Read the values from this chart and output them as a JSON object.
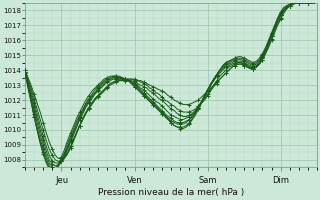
{
  "xlabel": "Pression niveau de la mer( hPa )",
  "ylim": [
    1007.5,
    1018.5
  ],
  "xlim": [
    0,
    96
  ],
  "yticks": [
    1008,
    1009,
    1010,
    1011,
    1012,
    1013,
    1014,
    1015,
    1016,
    1017,
    1018
  ],
  "xtick_positions": [
    12,
    36,
    60,
    84
  ],
  "xtick_labels": [
    "Jeu",
    "Ven",
    "Sam",
    "Dim"
  ],
  "bg_color": "#cce8d8",
  "grid_color_major": "#99c4aa",
  "grid_color_minor": "#b8d8c4",
  "line_color": "#1a5c1a",
  "linewidth": 0.7,
  "series": [
    [
      1014.0,
      1013.5,
      1013.0,
      1012.4,
      1011.8,
      1011.2,
      1010.5,
      1009.8,
      1009.2,
      1008.7,
      1008.3,
      1008.1,
      1008.1,
      1008.2,
      1008.5,
      1008.9,
      1009.3,
      1009.8,
      1010.3,
      1010.7,
      1011.1,
      1011.4,
      1011.7,
      1012.0,
      1012.2,
      1012.4,
      1012.6,
      1012.8,
      1013.0,
      1013.1,
      1013.2,
      1013.3,
      1013.3,
      1013.4,
      1013.4,
      1013.4,
      1013.4,
      1013.3,
      1013.3,
      1013.2,
      1013.1,
      1013.0,
      1012.9,
      1012.8,
      1012.7,
      1012.6,
      1012.5,
      1012.3,
      1012.2,
      1012.0,
      1011.9,
      1011.8,
      1011.7,
      1011.7,
      1011.7,
      1011.8,
      1011.9,
      1012.0,
      1012.2,
      1012.4,
      1012.6,
      1012.8,
      1013.0,
      1013.2,
      1013.4,
      1013.6,
      1013.8,
      1014.0,
      1014.2,
      1014.3,
      1014.4,
      1014.4,
      1014.3,
      1014.2,
      1014.1,
      1014.1,
      1014.2,
      1014.4,
      1014.7,
      1015.1,
      1015.5,
      1016.0,
      1016.5,
      1017.0,
      1017.4,
      1017.8,
      1018.1,
      1018.3,
      1018.4,
      1018.5,
      1018.5,
      1018.5,
      1018.5,
      1018.5,
      1018.5,
      1018.5
    ],
    [
      1014.0,
      1013.4,
      1012.8,
      1012.1,
      1011.4,
      1010.7,
      1010.0,
      1009.3,
      1008.7,
      1008.3,
      1008.0,
      1007.9,
      1007.9,
      1008.1,
      1008.4,
      1008.8,
      1009.3,
      1009.8,
      1010.3,
      1010.7,
      1011.1,
      1011.5,
      1011.8,
      1012.1,
      1012.3,
      1012.5,
      1012.7,
      1012.9,
      1013.1,
      1013.2,
      1013.3,
      1013.4,
      1013.4,
      1013.4,
      1013.4,
      1013.4,
      1013.3,
      1013.3,
      1013.2,
      1013.1,
      1013.0,
      1012.8,
      1012.7,
      1012.5,
      1012.4,
      1012.2,
      1012.0,
      1011.9,
      1011.7,
      1011.6,
      1011.4,
      1011.3,
      1011.2,
      1011.2,
      1011.2,
      1011.3,
      1011.4,
      1011.6,
      1011.8,
      1012.0,
      1012.3,
      1012.6,
      1012.9,
      1013.1,
      1013.4,
      1013.6,
      1013.8,
      1014.0,
      1014.2,
      1014.3,
      1014.4,
      1014.4,
      1014.3,
      1014.2,
      1014.1,
      1014.1,
      1014.2,
      1014.5,
      1014.9,
      1015.3,
      1015.8,
      1016.3,
      1016.8,
      1017.3,
      1017.7,
      1018.0,
      1018.2,
      1018.3,
      1018.4,
      1018.5,
      1018.5,
      1018.5,
      1018.5,
      1018.5,
      1018.5,
      1018.5
    ],
    [
      1014.0,
      1013.3,
      1012.6,
      1011.8,
      1011.1,
      1010.3,
      1009.6,
      1008.9,
      1008.3,
      1007.9,
      1007.8,
      1007.8,
      1007.9,
      1008.2,
      1008.5,
      1008.9,
      1009.4,
      1009.9,
      1010.3,
      1010.8,
      1011.2,
      1011.5,
      1011.8,
      1012.1,
      1012.3,
      1012.5,
      1012.7,
      1012.9,
      1013.1,
      1013.2,
      1013.3,
      1013.3,
      1013.3,
      1013.3,
      1013.3,
      1013.3,
      1013.2,
      1013.1,
      1013.0,
      1012.9,
      1012.8,
      1012.6,
      1012.5,
      1012.3,
      1012.1,
      1012.0,
      1011.8,
      1011.6,
      1011.4,
      1011.3,
      1011.1,
      1011.0,
      1010.9,
      1010.9,
      1011.0,
      1011.1,
      1011.3,
      1011.5,
      1011.8,
      1012.1,
      1012.4,
      1012.7,
      1013.0,
      1013.3,
      1013.6,
      1013.8,
      1014.0,
      1014.2,
      1014.3,
      1014.4,
      1014.5,
      1014.5,
      1014.4,
      1014.3,
      1014.2,
      1014.1,
      1014.2,
      1014.4,
      1014.7,
      1015.1,
      1015.6,
      1016.1,
      1016.6,
      1017.1,
      1017.5,
      1017.9,
      1018.1,
      1018.3,
      1018.4,
      1018.5,
      1018.5,
      1018.5,
      1018.5,
      1018.5,
      1018.5,
      1018.5
    ],
    [
      1014.0,
      1013.2,
      1012.4,
      1011.6,
      1010.8,
      1010.0,
      1009.3,
      1008.6,
      1008.0,
      1007.7,
      1007.6,
      1007.7,
      1007.9,
      1008.3,
      1008.7,
      1009.2,
      1009.7,
      1010.2,
      1010.7,
      1011.1,
      1011.5,
      1011.8,
      1012.1,
      1012.4,
      1012.6,
      1012.8,
      1013.0,
      1013.2,
      1013.3,
      1013.4,
      1013.4,
      1013.4,
      1013.4,
      1013.3,
      1013.3,
      1013.2,
      1013.1,
      1013.0,
      1012.8,
      1012.7,
      1012.5,
      1012.3,
      1012.1,
      1011.9,
      1011.8,
      1011.6,
      1011.4,
      1011.2,
      1011.0,
      1010.9,
      1010.8,
      1010.7,
      1010.7,
      1010.8,
      1010.9,
      1011.1,
      1011.3,
      1011.6,
      1011.9,
      1012.3,
      1012.6,
      1013.0,
      1013.3,
      1013.6,
      1013.8,
      1014.0,
      1014.2,
      1014.3,
      1014.4,
      1014.5,
      1014.5,
      1014.5,
      1014.4,
      1014.3,
      1014.2,
      1014.1,
      1014.2,
      1014.5,
      1014.8,
      1015.3,
      1015.8,
      1016.3,
      1016.8,
      1017.3,
      1017.7,
      1018.0,
      1018.2,
      1018.3,
      1018.4,
      1018.5,
      1018.5,
      1018.5,
      1018.5,
      1018.5,
      1018.5,
      1018.5
    ],
    [
      1013.9,
      1013.1,
      1012.2,
      1011.3,
      1010.5,
      1009.7,
      1009.0,
      1008.3,
      1007.8,
      1007.5,
      1007.5,
      1007.6,
      1007.9,
      1008.3,
      1008.8,
      1009.3,
      1009.8,
      1010.3,
      1010.8,
      1011.2,
      1011.6,
      1011.9,
      1012.2,
      1012.5,
      1012.7,
      1012.9,
      1013.1,
      1013.3,
      1013.4,
      1013.5,
      1013.5,
      1013.5,
      1013.4,
      1013.4,
      1013.3,
      1013.2,
      1013.0,
      1012.9,
      1012.7,
      1012.5,
      1012.3,
      1012.1,
      1011.9,
      1011.7,
      1011.5,
      1011.3,
      1011.1,
      1010.9,
      1010.8,
      1010.6,
      1010.5,
      1010.5,
      1010.5,
      1010.6,
      1010.7,
      1011.0,
      1011.2,
      1011.5,
      1011.9,
      1012.2,
      1012.6,
      1013.0,
      1013.3,
      1013.6,
      1013.9,
      1014.1,
      1014.3,
      1014.4,
      1014.5,
      1014.6,
      1014.6,
      1014.6,
      1014.5,
      1014.4,
      1014.3,
      1014.2,
      1014.3,
      1014.5,
      1014.9,
      1015.3,
      1015.8,
      1016.3,
      1016.8,
      1017.3,
      1017.7,
      1018.0,
      1018.2,
      1018.3,
      1018.4,
      1018.5,
      1018.5,
      1018.5,
      1018.5,
      1018.5,
      1018.5,
      1018.5
    ],
    [
      1013.8,
      1012.9,
      1012.0,
      1011.1,
      1010.2,
      1009.4,
      1008.7,
      1008.1,
      1007.6,
      1007.4,
      1007.4,
      1007.6,
      1007.9,
      1008.4,
      1008.9,
      1009.4,
      1009.9,
      1010.4,
      1010.9,
      1011.3,
      1011.7,
      1012.0,
      1012.3,
      1012.5,
      1012.8,
      1013.0,
      1013.2,
      1013.3,
      1013.4,
      1013.5,
      1013.5,
      1013.5,
      1013.4,
      1013.4,
      1013.3,
      1013.1,
      1013.0,
      1012.8,
      1012.6,
      1012.4,
      1012.2,
      1012.0,
      1011.8,
      1011.6,
      1011.4,
      1011.2,
      1011.0,
      1010.8,
      1010.6,
      1010.5,
      1010.4,
      1010.4,
      1010.4,
      1010.5,
      1010.7,
      1010.9,
      1011.2,
      1011.5,
      1011.9,
      1012.3,
      1012.7,
      1013.0,
      1013.4,
      1013.7,
      1014.0,
      1014.2,
      1014.4,
      1014.5,
      1014.6,
      1014.7,
      1014.7,
      1014.7,
      1014.6,
      1014.5,
      1014.4,
      1014.3,
      1014.4,
      1014.6,
      1014.9,
      1015.3,
      1015.8,
      1016.3,
      1016.8,
      1017.3,
      1017.7,
      1018.0,
      1018.2,
      1018.3,
      1018.4,
      1018.5,
      1018.5,
      1018.5,
      1018.5,
      1018.5,
      1018.5,
      1018.5
    ],
    [
      1013.8,
      1012.8,
      1011.9,
      1010.9,
      1010.0,
      1009.2,
      1008.5,
      1007.9,
      1007.5,
      1007.3,
      1007.3,
      1007.6,
      1008.0,
      1008.5,
      1009.1,
      1009.6,
      1010.1,
      1010.6,
      1011.0,
      1011.4,
      1011.8,
      1012.1,
      1012.4,
      1012.7,
      1012.9,
      1013.1,
      1013.3,
      1013.4,
      1013.5,
      1013.6,
      1013.6,
      1013.5,
      1013.5,
      1013.4,
      1013.3,
      1013.1,
      1012.9,
      1012.7,
      1012.5,
      1012.3,
      1012.1,
      1011.9,
      1011.7,
      1011.5,
      1011.3,
      1011.1,
      1010.9,
      1010.7,
      1010.5,
      1010.3,
      1010.2,
      1010.2,
      1010.2,
      1010.3,
      1010.5,
      1010.8,
      1011.1,
      1011.5,
      1011.9,
      1012.3,
      1012.7,
      1013.1,
      1013.4,
      1013.7,
      1014.0,
      1014.3,
      1014.5,
      1014.6,
      1014.7,
      1014.8,
      1014.8,
      1014.8,
      1014.7,
      1014.6,
      1014.5,
      1014.4,
      1014.5,
      1014.7,
      1015.0,
      1015.4,
      1015.9,
      1016.4,
      1016.9,
      1017.4,
      1017.8,
      1018.1,
      1018.3,
      1018.4,
      1018.5,
      1018.5,
      1018.5,
      1018.5,
      1018.5,
      1018.5,
      1018.5,
      1018.5
    ],
    [
      1013.9,
      1012.9,
      1011.9,
      1010.9,
      1010.0,
      1009.1,
      1008.4,
      1007.8,
      1007.4,
      1007.3,
      1007.4,
      1007.7,
      1008.2,
      1008.7,
      1009.3,
      1009.8,
      1010.3,
      1010.8,
      1011.2,
      1011.6,
      1012.0,
      1012.3,
      1012.6,
      1012.8,
      1013.0,
      1013.2,
      1013.4,
      1013.5,
      1013.6,
      1013.6,
      1013.6,
      1013.6,
      1013.5,
      1013.4,
      1013.3,
      1013.1,
      1012.9,
      1012.7,
      1012.5,
      1012.3,
      1012.1,
      1011.9,
      1011.7,
      1011.5,
      1011.3,
      1011.1,
      1010.9,
      1010.7,
      1010.5,
      1010.3,
      1010.2,
      1010.1,
      1010.1,
      1010.2,
      1010.4,
      1010.7,
      1011.0,
      1011.4,
      1011.8,
      1012.2,
      1012.6,
      1013.0,
      1013.4,
      1013.7,
      1014.0,
      1014.3,
      1014.5,
      1014.6,
      1014.7,
      1014.8,
      1014.9,
      1014.9,
      1014.8,
      1014.7,
      1014.6,
      1014.5,
      1014.6,
      1014.8,
      1015.1,
      1015.5,
      1016.0,
      1016.5,
      1017.0,
      1017.5,
      1017.9,
      1018.2,
      1018.3,
      1018.4,
      1018.5,
      1018.5,
      1018.5,
      1018.5,
      1018.5,
      1018.5,
      1018.5,
      1018.5
    ]
  ]
}
